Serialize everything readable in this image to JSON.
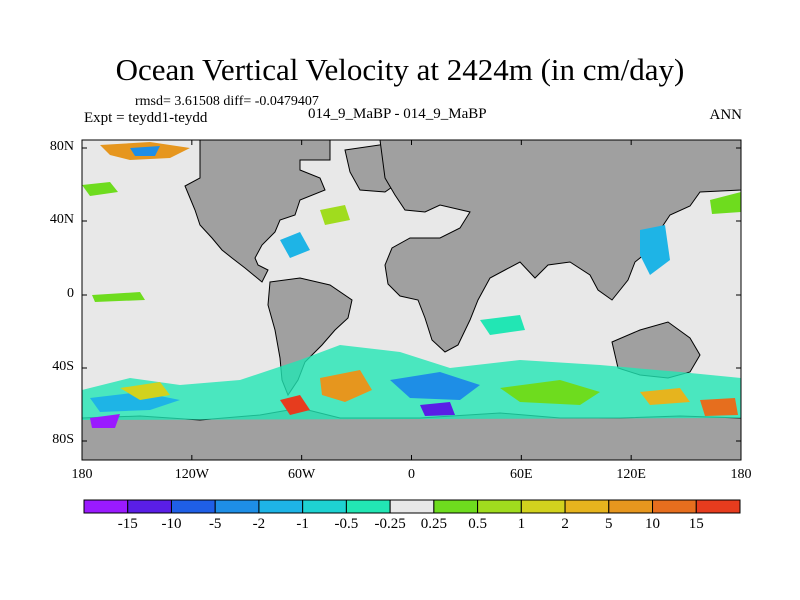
{
  "title": "Ocean Vertical Velocity at 2424m (in cm/day)",
  "stats_line": "rmsd= 3.61508 diff= -0.0479407",
  "expt_line": "Expt = teydd1-teydd",
  "case_line": "014_9_MaBP - 014_9_MaBP",
  "season": "ANN",
  "map": {
    "lat_labels": [
      "80N",
      "40N",
      "0",
      "40S",
      "80S"
    ],
    "lon_labels": [
      "180",
      "120W",
      "60W",
      "0",
      "60E",
      "120E",
      "180"
    ],
    "land_color": "#a0a0a0",
    "near_zero_color": "#e8e8e8"
  },
  "colorbar": {
    "colors": [
      "#9a1aff",
      "#5a1ee6",
      "#1f5fe6",
      "#1e8ee6",
      "#1eb4e6",
      "#1ed2d2",
      "#22e6b4",
      "#e8e8e8",
      "#6edc1e",
      "#a0dc1e",
      "#d2d21e",
      "#e6b41e",
      "#e6961e",
      "#e66e1e",
      "#e63c1e"
    ],
    "labels": [
      "-15",
      "-10",
      "-5",
      "-2",
      "-1",
      "-0.5",
      "-0.25",
      "0.25",
      "0.5",
      "1",
      "2",
      "5",
      "10",
      "15"
    ]
  }
}
